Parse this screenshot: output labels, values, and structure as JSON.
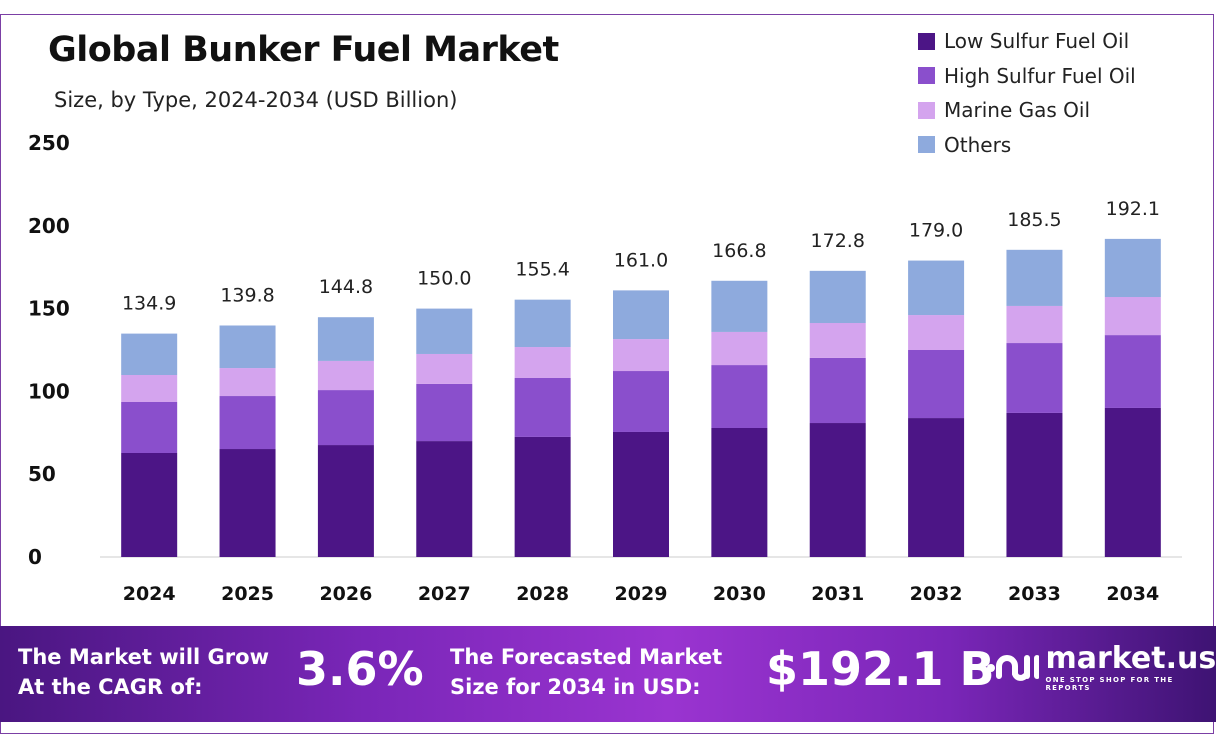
{
  "chart_data": {
    "type": "bar",
    "stacked": true,
    "title": "Global Bunker Fuel Market",
    "subtitle": "Size, by Type, 2024-2034 (USD Billion)",
    "categories": [
      "2024",
      "2025",
      "2026",
      "2027",
      "2028",
      "2029",
      "2030",
      "2031",
      "2032",
      "2033",
      "2034"
    ],
    "series": [
      {
        "name": "Low Sulfur Fuel Oil",
        "color": "#4c1586",
        "values": [
          62.8,
          65.2,
          67.6,
          70.0,
          72.5,
          75.5,
          77.9,
          80.9,
          83.9,
          87.0,
          90.0
        ]
      },
      {
        "name": "High Sulfur Fuel Oil",
        "color": "#8a4fcc",
        "values": [
          30.8,
          32.0,
          33.2,
          34.5,
          35.6,
          36.8,
          38.0,
          39.3,
          41.1,
          42.2,
          44.0
        ]
      },
      {
        "name": "Marine Gas Oil",
        "color": "#d4a4ee",
        "values": [
          16.3,
          16.9,
          17.6,
          18.1,
          18.7,
          19.3,
          20.0,
          21.1,
          21.1,
          22.4,
          23.0
        ]
      },
      {
        "name": "Others",
        "color": "#8eaadd",
        "values": [
          25.0,
          25.7,
          26.4,
          27.4,
          28.6,
          29.4,
          30.9,
          31.5,
          32.9,
          33.9,
          35.1
        ]
      }
    ],
    "totals": [
      "134.9",
      "139.8",
      "144.8",
      "150.0",
      "155.4",
      "161.0",
      "166.8",
      "172.8",
      "179.0",
      "185.5",
      "192.1"
    ],
    "yticks": [
      "0",
      "50",
      "100",
      "150",
      "200",
      "250"
    ],
    "ylim": [
      0,
      250
    ],
    "grid": false,
    "legend_position": "top-right"
  },
  "footer": {
    "cagr_label_1": "The Market will Grow",
    "cagr_label_2": "At the CAGR of:",
    "cagr_value": "3.6%",
    "forecast_label_1": "The Forecasted Market",
    "forecast_label_2": "Size for 2034 in USD:",
    "forecast_value": "$192.1 B",
    "brand": "market.us",
    "brand_tagline": "ONE STOP SHOP FOR THE REPORTS"
  }
}
